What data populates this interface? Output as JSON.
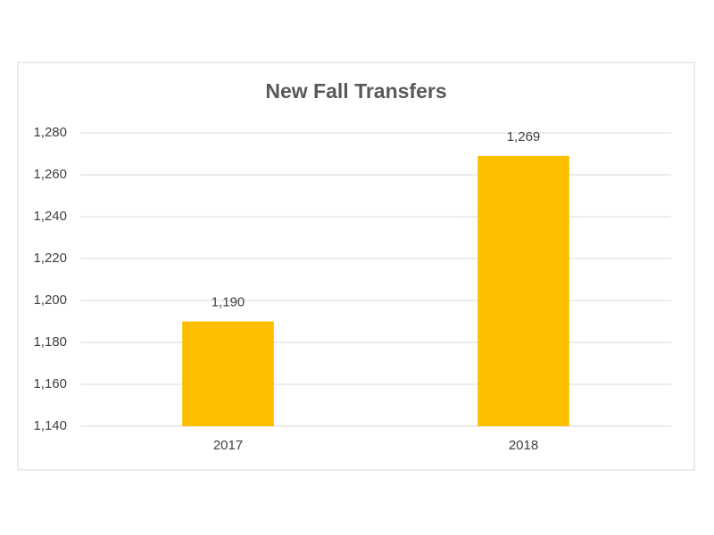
{
  "chart_data": {
    "type": "bar",
    "title": "New Fall Transfers",
    "categories": [
      "2017",
      "2018"
    ],
    "values": [
      1190,
      1269
    ],
    "value_labels": [
      "1,190",
      "1,269"
    ],
    "color": "#fbbf00",
    "ylim": [
      1140,
      1280
    ],
    "yticks": [
      {
        "value": 1140,
        "label": "1,140"
      },
      {
        "value": 1160,
        "label": "1,160"
      },
      {
        "value": 1180,
        "label": "1,180"
      },
      {
        "value": 1200,
        "label": "1,200"
      },
      {
        "value": 1220,
        "label": "1,220"
      },
      {
        "value": 1240,
        "label": "1,240"
      },
      {
        "value": 1260,
        "label": "1,260"
      },
      {
        "value": 1280,
        "label": "1,280"
      }
    ],
    "grid": true
  }
}
